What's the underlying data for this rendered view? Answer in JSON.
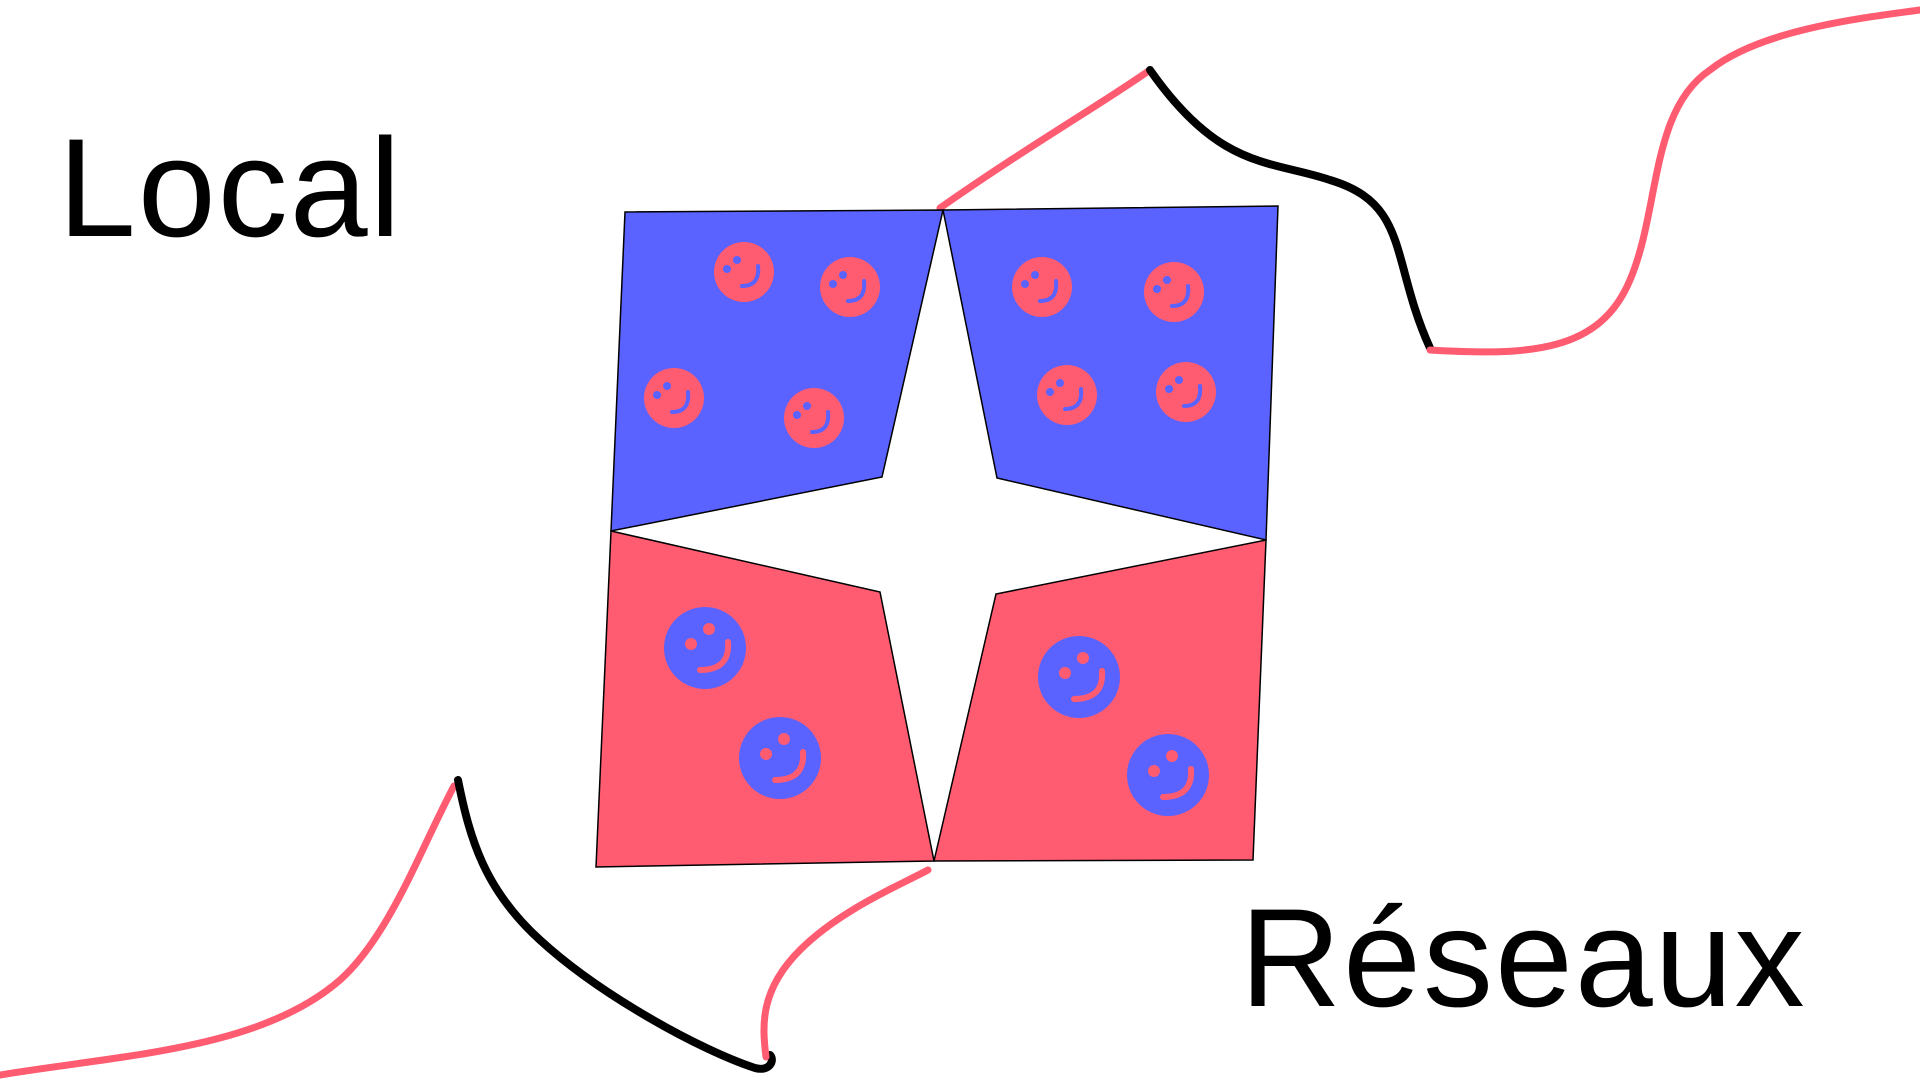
{
  "labels": {
    "top_left": "Local",
    "bottom_right": "Réseaux"
  },
  "colors": {
    "blue": "#5a62ff",
    "red": "#ff5c72",
    "black": "#000000",
    "background": "#ffffff"
  },
  "icons": {
    "top_left_panel": [
      "smiley-icon",
      "smiley-icon",
      "smiley-icon",
      "smiley-icon"
    ],
    "top_right_panel": [
      "smiley-icon",
      "smiley-icon",
      "smiley-icon",
      "smiley-icon"
    ],
    "bottom_left_panel": [
      "smiley-icon",
      "smiley-icon"
    ],
    "bottom_right_panel": [
      "smiley-icon",
      "smiley-icon"
    ]
  }
}
